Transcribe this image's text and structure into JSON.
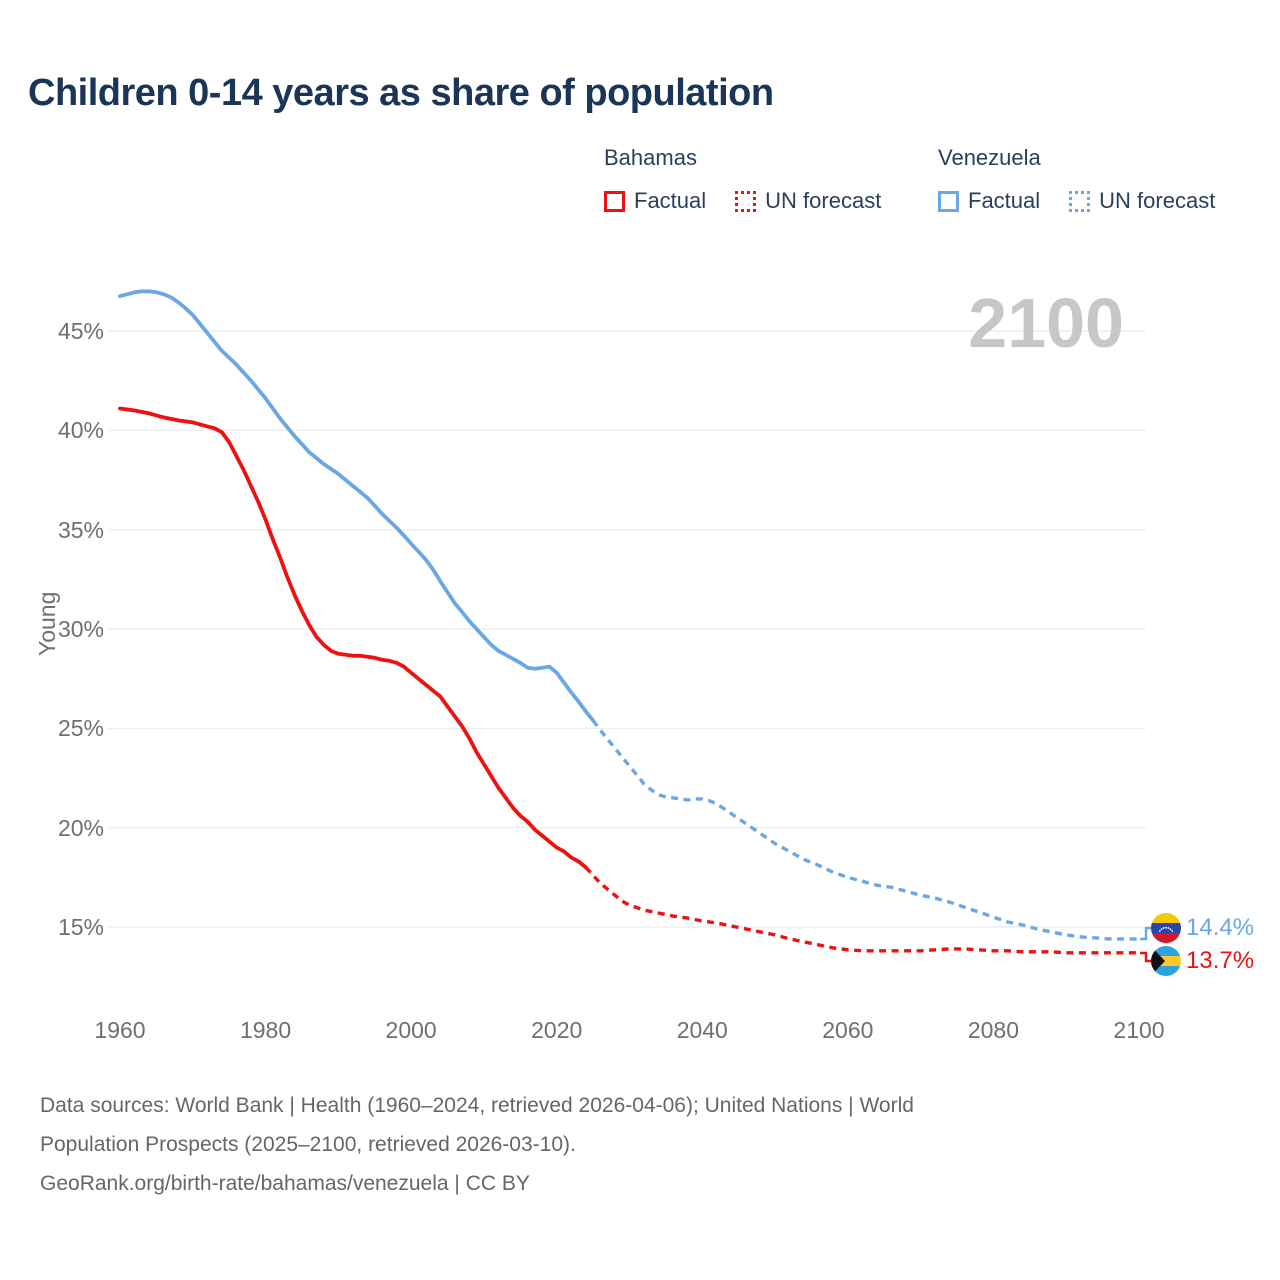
{
  "title": "Children 0-14 years as share of population",
  "watermark": "2100",
  "legend": {
    "bahamas": {
      "label": "Bahamas",
      "factual": "Factual",
      "forecast": "UN forecast"
    },
    "venezuela": {
      "label": "Venezuela",
      "factual": "Factual",
      "forecast": "UN forecast"
    }
  },
  "y_axis": {
    "label": "Young",
    "ticks": [
      "45%",
      "40%",
      "35%",
      "30%",
      "25%",
      "20%",
      "15%"
    ]
  },
  "x_axis": {
    "ticks": [
      "1960",
      "1980",
      "2000",
      "2020",
      "2040",
      "2060",
      "2080",
      "2100"
    ]
  },
  "end_labels": {
    "venezuela": {
      "value": "14.4%",
      "flag_icon": "venezuela-flag-icon"
    },
    "bahamas": {
      "value": "13.7%",
      "flag_icon": "bahamas-flag-icon"
    }
  },
  "footer": {
    "line1": "Data sources: World Bank | Health (1960–2024, retrieved 2026-04-06); United Nations | World",
    "line2": "Population Prospects (2025–2100, retrieved 2026-03-10).",
    "line3": "GeoRank.org/birth-rate/bahamas/venezuela | CC BY"
  },
  "colors": {
    "bahamas_line": "#ee1111",
    "venezuela_line": "#6ba7e2",
    "title_text": "#1b3557",
    "legend_text": "#2a3f5a",
    "axis_text": "#6f6f6f",
    "grid_line": "#ebebeb",
    "watermark_text": "#c7c7c7",
    "footer_text": "#666666",
    "flag_ve_yellow": "#f7c800",
    "flag_ve_blue": "#2946a8",
    "flag_ve_red": "#d5172c",
    "flag_bh_aqua": "#2ba3dc",
    "flag_bh_gold": "#ffc72c",
    "flag_bh_black": "#111111"
  },
  "chart_data": {
    "type": "line",
    "title": "Children 0-14 years as share of population",
    "xlabel": "",
    "ylabel": "Young",
    "x_range": [
      1960,
      2100
    ],
    "y_ticks": [
      45,
      40,
      35,
      30,
      25,
      20,
      15
    ],
    "x_ticks": [
      1960,
      1980,
      2000,
      2020,
      2040,
      2060,
      2080,
      2100
    ],
    "grid": "horizontal",
    "legend_position": "top-right",
    "series": [
      {
        "id": "path-bahamas-factual",
        "name": "Bahamas Factual",
        "country": "Bahamas",
        "kind": "factual",
        "style": "solid",
        "color_key": "bahamas_line",
        "points": [
          [
            1960,
            41.1
          ],
          [
            1962,
            41.0
          ],
          [
            1964,
            40.85
          ],
          [
            1966,
            40.65
          ],
          [
            1968,
            40.5
          ],
          [
            1970,
            40.4
          ],
          [
            1972,
            40.2
          ],
          [
            1973,
            40.1
          ],
          [
            1974,
            39.9
          ],
          [
            1975,
            39.4
          ],
          [
            1976,
            38.7
          ],
          [
            1977,
            38.0
          ],
          [
            1978,
            37.2
          ],
          [
            1979,
            36.4
          ],
          [
            1980,
            35.5
          ],
          [
            1981,
            34.5
          ],
          [
            1982,
            33.6
          ],
          [
            1983,
            32.6
          ],
          [
            1984,
            31.7
          ],
          [
            1985,
            30.9
          ],
          [
            1986,
            30.2
          ],
          [
            1987,
            29.6
          ],
          [
            1988,
            29.2
          ],
          [
            1989,
            28.9
          ],
          [
            1990,
            28.75
          ],
          [
            1991,
            28.7
          ],
          [
            1992,
            28.65
          ],
          [
            1993,
            28.65
          ],
          [
            1994,
            28.6
          ],
          [
            1995,
            28.55
          ],
          [
            1996,
            28.45
          ],
          [
            1997,
            28.4
          ],
          [
            1998,
            28.3
          ],
          [
            1999,
            28.1
          ],
          [
            2000,
            27.8
          ],
          [
            2001,
            27.5
          ],
          [
            2002,
            27.2
          ],
          [
            2003,
            26.9
          ],
          [
            2004,
            26.6
          ],
          [
            2005,
            26.1
          ],
          [
            2006,
            25.6
          ],
          [
            2007,
            25.1
          ],
          [
            2008,
            24.5
          ],
          [
            2009,
            23.8
          ],
          [
            2010,
            23.2
          ],
          [
            2011,
            22.6
          ],
          [
            2012,
            22.0
          ],
          [
            2013,
            21.5
          ],
          [
            2014,
            21.0
          ],
          [
            2015,
            20.6
          ],
          [
            2016,
            20.3
          ],
          [
            2017,
            19.9
          ],
          [
            2018,
            19.6
          ],
          [
            2019,
            19.3
          ],
          [
            2020,
            19.0
          ],
          [
            2021,
            18.8
          ],
          [
            2022,
            18.5
          ],
          [
            2023,
            18.3
          ],
          [
            2024,
            18.0
          ]
        ]
      },
      {
        "id": "path-bahamas-forecast",
        "name": "Bahamas UN forecast",
        "country": "Bahamas",
        "kind": "forecast",
        "style": "dashed",
        "color_key": "bahamas_line",
        "points": [
          [
            2024,
            18.0
          ],
          [
            2025,
            17.6
          ],
          [
            2026,
            17.2
          ],
          [
            2027,
            16.9
          ],
          [
            2028,
            16.6
          ],
          [
            2029,
            16.3
          ],
          [
            2030,
            16.1
          ],
          [
            2032,
            15.85
          ],
          [
            2034,
            15.7
          ],
          [
            2036,
            15.55
          ],
          [
            2038,
            15.45
          ],
          [
            2040,
            15.3
          ],
          [
            2042,
            15.2
          ],
          [
            2044,
            15.05
          ],
          [
            2046,
            14.9
          ],
          [
            2048,
            14.75
          ],
          [
            2050,
            14.6
          ],
          [
            2052,
            14.4
          ],
          [
            2054,
            14.25
          ],
          [
            2056,
            14.1
          ],
          [
            2058,
            13.95
          ],
          [
            2060,
            13.85
          ],
          [
            2062,
            13.8
          ],
          [
            2064,
            13.8
          ],
          [
            2066,
            13.8
          ],
          [
            2068,
            13.8
          ],
          [
            2070,
            13.8
          ],
          [
            2072,
            13.85
          ],
          [
            2074,
            13.9
          ],
          [
            2076,
            13.9
          ],
          [
            2078,
            13.85
          ],
          [
            2080,
            13.8
          ],
          [
            2082,
            13.8
          ],
          [
            2084,
            13.75
          ],
          [
            2086,
            13.75
          ],
          [
            2088,
            13.75
          ],
          [
            2090,
            13.7
          ],
          [
            2092,
            13.7
          ],
          [
            2094,
            13.7
          ],
          [
            2096,
            13.7
          ],
          [
            2098,
            13.7
          ],
          [
            2100,
            13.7
          ]
        ]
      },
      {
        "id": "path-venezuela-factual",
        "name": "Venezuela Factual",
        "country": "Venezuela",
        "kind": "factual",
        "style": "solid",
        "color_key": "venezuela_line",
        "points": [
          [
            1960,
            46.75
          ],
          [
            1961,
            46.85
          ],
          [
            1962,
            46.95
          ],
          [
            1963,
            47.0
          ],
          [
            1964,
            47.0
          ],
          [
            1965,
            46.95
          ],
          [
            1966,
            46.85
          ],
          [
            1967,
            46.7
          ],
          [
            1968,
            46.45
          ],
          [
            1969,
            46.15
          ],
          [
            1970,
            45.8
          ],
          [
            1971,
            45.35
          ],
          [
            1972,
            44.9
          ],
          [
            1973,
            44.45
          ],
          [
            1974,
            44.0
          ],
          [
            1975,
            43.65
          ],
          [
            1976,
            43.3
          ],
          [
            1977,
            42.9
          ],
          [
            1978,
            42.5
          ],
          [
            1979,
            42.05
          ],
          [
            1980,
            41.6
          ],
          [
            1981,
            41.1
          ],
          [
            1982,
            40.6
          ],
          [
            1983,
            40.15
          ],
          [
            1984,
            39.7
          ],
          [
            1985,
            39.3
          ],
          [
            1986,
            38.9
          ],
          [
            1987,
            38.6
          ],
          [
            1988,
            38.3
          ],
          [
            1989,
            38.05
          ],
          [
            1990,
            37.8
          ],
          [
            1991,
            37.5
          ],
          [
            1992,
            37.2
          ],
          [
            1993,
            36.9
          ],
          [
            1994,
            36.6
          ],
          [
            1995,
            36.2
          ],
          [
            1996,
            35.8
          ],
          [
            1997,
            35.45
          ],
          [
            1998,
            35.1
          ],
          [
            1999,
            34.7
          ],
          [
            2000,
            34.3
          ],
          [
            2001,
            33.9
          ],
          [
            2002,
            33.5
          ],
          [
            2003,
            33.0
          ],
          [
            2004,
            32.4
          ],
          [
            2005,
            31.85
          ],
          [
            2006,
            31.3
          ],
          [
            2007,
            30.85
          ],
          [
            2008,
            30.4
          ],
          [
            2009,
            30.0
          ],
          [
            2010,
            29.6
          ],
          [
            2011,
            29.2
          ],
          [
            2012,
            28.9
          ],
          [
            2013,
            28.7
          ],
          [
            2014,
            28.5
          ],
          [
            2015,
            28.3
          ],
          [
            2016,
            28.05
          ],
          [
            2017,
            28.0
          ],
          [
            2018,
            28.05
          ],
          [
            2019,
            28.1
          ],
          [
            2020,
            27.8
          ],
          [
            2021,
            27.3
          ],
          [
            2022,
            26.8
          ],
          [
            2023,
            26.35
          ],
          [
            2024,
            25.85
          ],
          [
            2025,
            25.4
          ]
        ]
      },
      {
        "id": "path-venezuela-forecast",
        "name": "Venezuela UN forecast",
        "country": "Venezuela",
        "kind": "forecast",
        "style": "dashed",
        "color_key": "venezuela_line",
        "points": [
          [
            2025,
            25.4
          ],
          [
            2026,
            24.9
          ],
          [
            2027,
            24.45
          ],
          [
            2028,
            24.0
          ],
          [
            2029,
            23.55
          ],
          [
            2030,
            23.1
          ],
          [
            2031,
            22.65
          ],
          [
            2032,
            22.2
          ],
          [
            2033,
            21.9
          ],
          [
            2034,
            21.65
          ],
          [
            2035,
            21.55
          ],
          [
            2036,
            21.5
          ],
          [
            2037,
            21.45
          ],
          [
            2038,
            21.4
          ],
          [
            2039,
            21.45
          ],
          [
            2040,
            21.45
          ],
          [
            2041,
            21.35
          ],
          [
            2042,
            21.2
          ],
          [
            2044,
            20.7
          ],
          [
            2046,
            20.2
          ],
          [
            2048,
            19.7
          ],
          [
            2050,
            19.2
          ],
          [
            2052,
            18.8
          ],
          [
            2054,
            18.4
          ],
          [
            2056,
            18.1
          ],
          [
            2058,
            17.75
          ],
          [
            2060,
            17.5
          ],
          [
            2062,
            17.3
          ],
          [
            2064,
            17.1
          ],
          [
            2066,
            17.0
          ],
          [
            2068,
            16.8
          ],
          [
            2070,
            16.6
          ],
          [
            2072,
            16.45
          ],
          [
            2074,
            16.25
          ],
          [
            2076,
            16.0
          ],
          [
            2078,
            15.75
          ],
          [
            2080,
            15.5
          ],
          [
            2082,
            15.25
          ],
          [
            2084,
            15.1
          ],
          [
            2086,
            14.9
          ],
          [
            2088,
            14.75
          ],
          [
            2090,
            14.6
          ],
          [
            2092,
            14.5
          ],
          [
            2094,
            14.45
          ],
          [
            2096,
            14.4
          ],
          [
            2098,
            14.4
          ],
          [
            2100,
            14.4
          ]
        ]
      }
    ],
    "end_values": {
      "venezuela": 14.4,
      "bahamas": 13.7
    }
  }
}
